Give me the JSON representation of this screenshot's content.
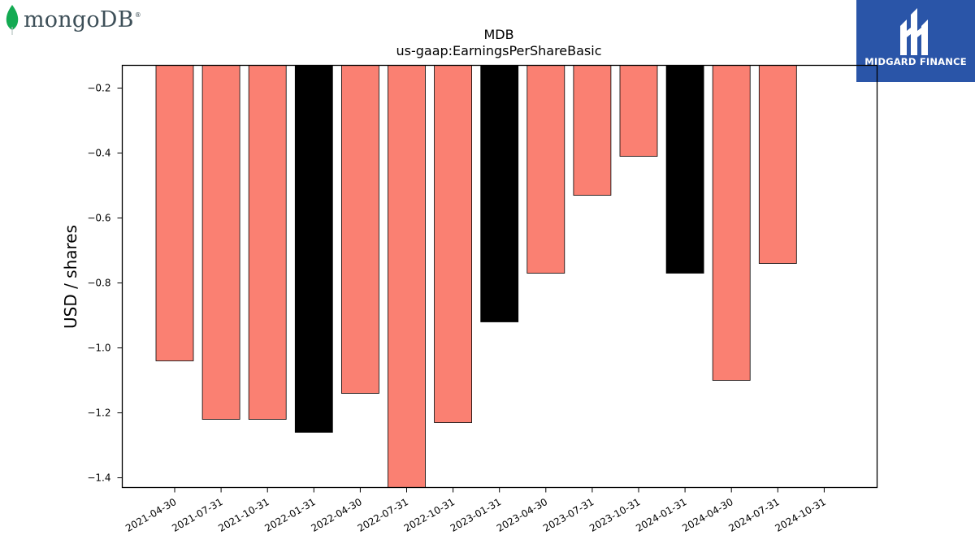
{
  "logos": {
    "left_text": "mongoDB",
    "left_reg": "®",
    "right_text": "MIDGARD FINANCE"
  },
  "colors": {
    "bar_default": "#fa8072",
    "bar_highlight": "#000000",
    "edge": "#000000"
  },
  "chart_data": {
    "type": "bar",
    "title": "MDB",
    "subtitle": "us-gaap:EarningsPerShareBasic",
    "xlabel": "",
    "ylabel": "USD / shares",
    "ylim": [
      -1.43,
      -0.13
    ],
    "yticks": [
      -0.2,
      -0.4,
      -0.6,
      -0.8,
      -1.0,
      -1.2,
      -1.4
    ],
    "ytick_labels": [
      "−0.2",
      "−0.4",
      "−0.6",
      "−0.8",
      "−1.0",
      "−1.2",
      "−1.4"
    ],
    "categories": [
      "2021-04-30",
      "2021-07-31",
      "2021-10-31",
      "2022-01-31",
      "2022-04-30",
      "2022-07-31",
      "2022-10-31",
      "2023-01-31",
      "2023-04-30",
      "2023-07-31",
      "2023-10-31",
      "2024-01-31",
      "2024-04-30",
      "2024-07-31",
      "2024-10-31"
    ],
    "values": [
      -1.04,
      -1.22,
      -1.22,
      -1.26,
      -1.14,
      -1.43,
      -1.23,
      -0.92,
      -0.77,
      -0.53,
      -0.41,
      -0.77,
      -1.1,
      -0.74,
      null
    ],
    "highlight": [
      false,
      false,
      false,
      true,
      false,
      false,
      false,
      true,
      false,
      false,
      false,
      true,
      false,
      false,
      false
    ],
    "grid": false,
    "legend": "none"
  }
}
